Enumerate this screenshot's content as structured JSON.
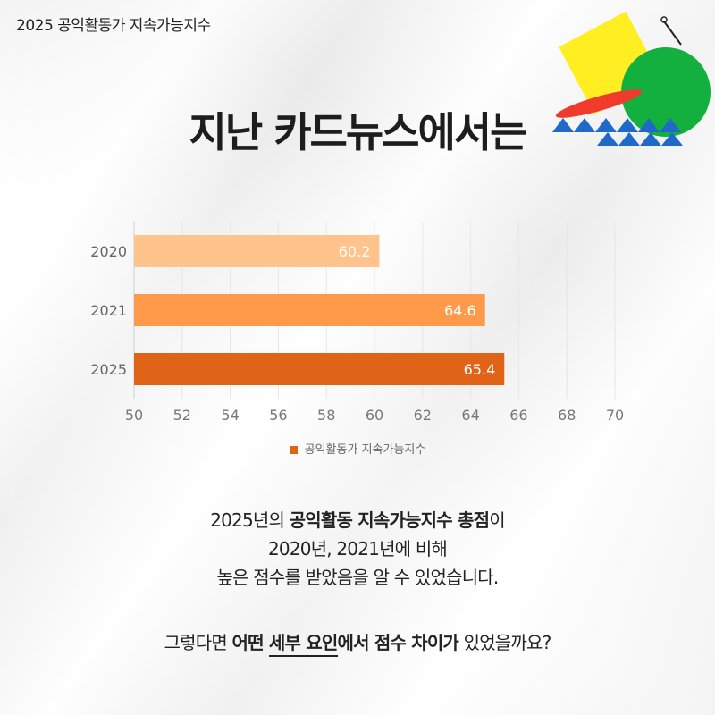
{
  "header": {
    "title": "2025 공익활동가 지속가능지수"
  },
  "headline": "지난 카드뉴스에서는",
  "chart_data": {
    "type": "bar",
    "orientation": "horizontal",
    "categories": [
      "2020",
      "2021",
      "2025"
    ],
    "series": [
      {
        "name": "공익활동가 지속가능지수",
        "values": [
          60.2,
          64.6,
          65.4
        ]
      }
    ],
    "data_labels": [
      "60.2",
      "64.6",
      "65.4"
    ],
    "bar_colors": [
      "#ffc38e",
      "#ff9a4a",
      "#e06418"
    ],
    "xlim": [
      50,
      70
    ],
    "xticks": [
      "50",
      "52",
      "54",
      "56",
      "58",
      "60",
      "62",
      "64",
      "66",
      "68",
      "70"
    ],
    "grid": true,
    "legend": "bottom",
    "legend_color": "#e06418"
  },
  "summary": {
    "line1": {
      "prefix": "2025년의 ",
      "bold": "공익활동 지속가능지수 총점",
      "suffix": "이"
    },
    "line2": "2020년, 2021년에 비해",
    "line3": "높은 점수를 받았음을 알 수 있었습니다."
  },
  "question": {
    "p1": "그렇다면 ",
    "b1": "어떤 ",
    "u1": "세부 요인",
    "b2": "에서 점수 차이가",
    "p2": " 있었을까요?"
  },
  "decoration": {
    "colors": {
      "yellow": "#ffee22",
      "green": "#13b040",
      "red": "#ef3a2c",
      "blue": "#1f69c8"
    }
  }
}
